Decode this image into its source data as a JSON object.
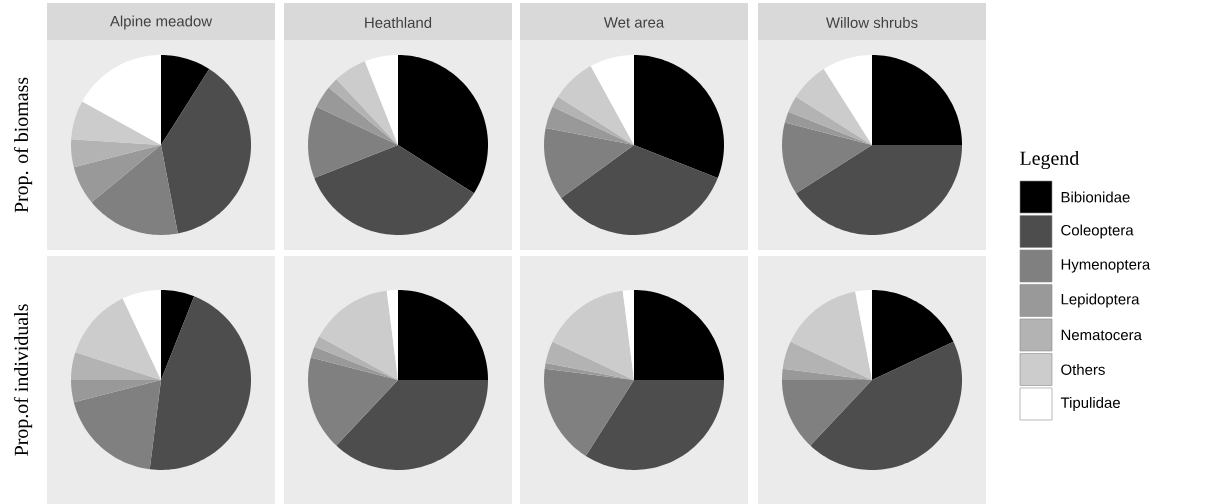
{
  "chart_data": [
    {
      "type": "pie",
      "title": "Alpine meadow",
      "ylabel": "Prop. of biomass",
      "legend": "right",
      "legend_title": "Legend",
      "categories": [
        "Bibionidae",
        "Coleoptera",
        "Hymenoptera",
        "Lepidoptera",
        "Nematocera",
        "Others",
        "Tipulidae"
      ],
      "values": [
        9,
        38,
        17,
        7,
        5,
        7,
        17
      ],
      "colors": [
        "#000000",
        "#4d4d4d",
        "#808080",
        "#999999",
        "#b3b3b3",
        "#cccccc",
        "#ffffff"
      ]
    },
    {
      "type": "pie",
      "title": "Heathland",
      "values": [
        34,
        35,
        13,
        4,
        2,
        6,
        6
      ],
      "colors": [
        "#000000",
        "#4d4d4d",
        "#808080",
        "#999999",
        "#b3b3b3",
        "#cccccc",
        "#ffffff"
      ]
    },
    {
      "type": "pie",
      "title": "Wet area",
      "values": [
        31,
        34,
        13,
        4,
        2,
        8,
        8
      ],
      "colors": [
        "#000000",
        "#4d4d4d",
        "#808080",
        "#999999",
        "#b3b3b3",
        "#cccccc",
        "#ffffff"
      ]
    },
    {
      "type": "pie",
      "title": "Willow shrubs",
      "values": [
        25,
        41,
        13,
        2,
        3,
        7,
        9
      ],
      "colors": [
        "#000000",
        "#4d4d4d",
        "#808080",
        "#999999",
        "#b3b3b3",
        "#cccccc",
        "#ffffff"
      ]
    },
    {
      "type": "pie",
      "ylabel": "Prop.of individuals",
      "values": [
        6,
        46,
        19,
        4,
        5,
        13,
        7
      ],
      "colors": [
        "#000000",
        "#4d4d4d",
        "#808080",
        "#999999",
        "#b3b3b3",
        "#cccccc",
        "#ffffff"
      ]
    },
    {
      "type": "pie",
      "values": [
        25,
        37,
        17,
        2,
        2,
        15,
        2
      ],
      "colors": [
        "#000000",
        "#4d4d4d",
        "#808080",
        "#999999",
        "#b3b3b3",
        "#cccccc",
        "#ffffff"
      ]
    },
    {
      "type": "pie",
      "values": [
        25,
        34,
        18,
        1,
        4,
        16,
        2
      ],
      "colors": [
        "#000000",
        "#4d4d4d",
        "#808080",
        "#999999",
        "#b3b3b3",
        "#cccccc",
        "#ffffff"
      ]
    },
    {
      "type": "pie",
      "values": [
        18,
        44,
        13,
        2,
        5,
        15,
        3
      ],
      "colors": [
        "#000000",
        "#4d4d4d",
        "#808080",
        "#999999",
        "#b3b3b3",
        "#cccccc",
        "#ffffff"
      ]
    }
  ]
}
